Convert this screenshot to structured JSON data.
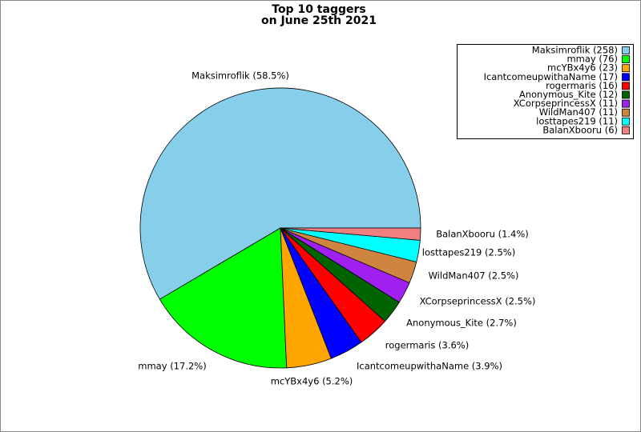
{
  "chart_data": {
    "type": "pie",
    "title": [
      "Top 10 taggers",
      "on June 25th 2021"
    ],
    "categories": [
      "Maksimroflik (258)",
      "mmay (76)",
      "mcYBx4y6 (23)",
      "IcantcomeupwithaName (17)",
      "rogermaris (16)",
      "Anonymous_Kite (12)",
      "XCorpseprincessX (11)",
      "WildMan407 (11)",
      "losttapes219 (11)",
      "BalanXbooru (6)"
    ],
    "values": [
      58.5,
      17.2,
      5.2,
      3.9,
      3.6,
      2.7,
      2.5,
      2.5,
      2.5,
      1.4
    ],
    "value_labels": [
      "Maksimroflik (58.5%)",
      "mmay (17.2%)",
      "mcYBx4y6 (5.2%)",
      "IcantcomeupwithaName (3.9%)",
      "rogermaris (3.6%)",
      "Anonymous_Kite (2.7%)",
      "XCorpseprincessX (2.5%)",
      "WildMan407 (2.5%)",
      "losttapes219 (2.5%)",
      "BalanXbooru (1.4%)"
    ],
    "colors": [
      "#87ceeb",
      "#00ff00",
      "#ffa500",
      "#0000ff",
      "#ff0000",
      "#006400",
      "#a020f0",
      "#cd853f",
      "#00ffff",
      "#f08080"
    ],
    "legend": "upper right"
  }
}
